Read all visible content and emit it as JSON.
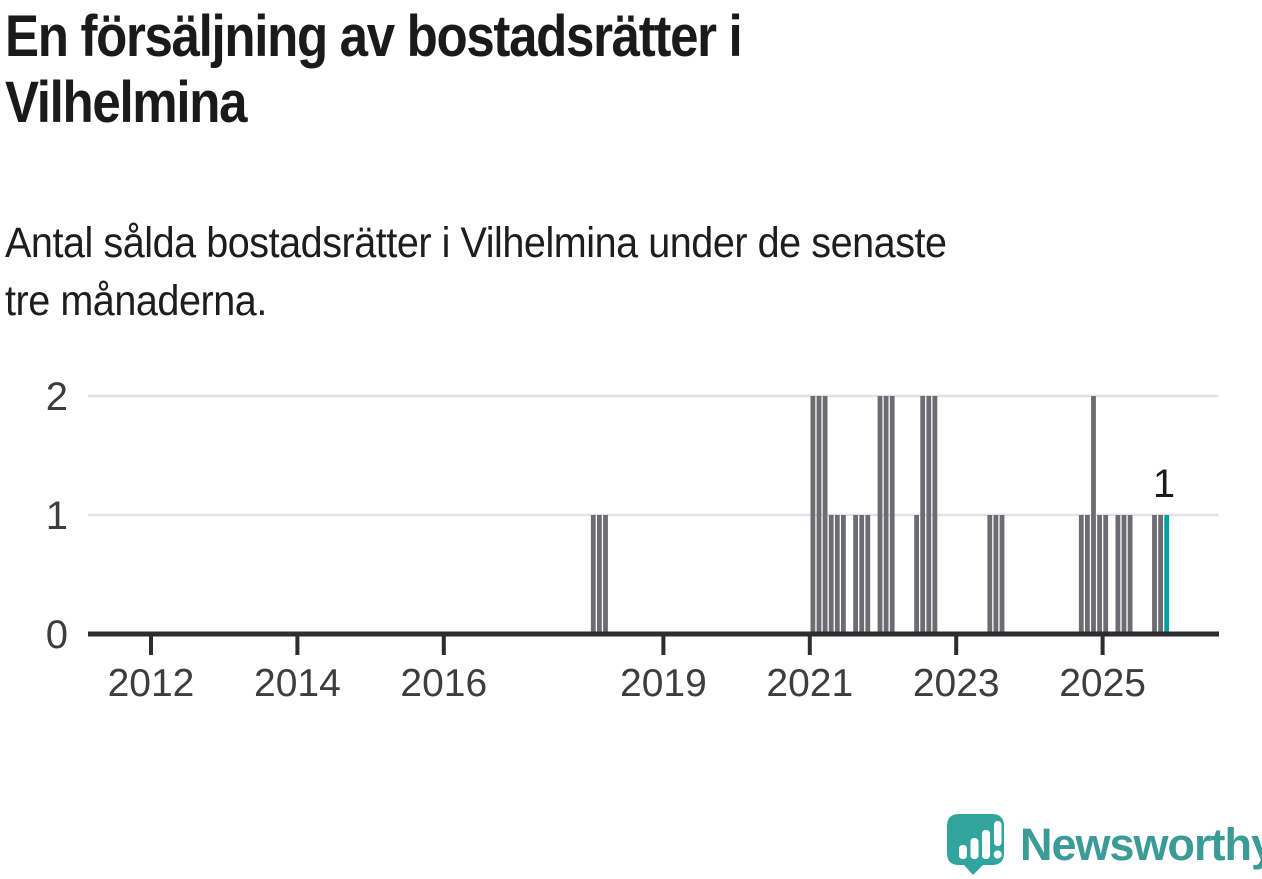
{
  "title": "En försäljning av bostadsrätter i\nVilhelmina",
  "subtitle": "Antal sålda bostadsrätter i Vilhelmina under de senaste\ntre månaderna.",
  "logo": {
    "wordmark": "Newsworthy",
    "icon": "newsworthy-speech-bubble-bar-chart-icon"
  },
  "colors": {
    "bar": "#6C6C72",
    "highlight": "#00A09B",
    "axis": "#2D2D2D",
    "grid": "#E2E2E2",
    "tick_label": "#3D3D3D",
    "title_text": "#1A1A1A",
    "logo_icon_teal": "#31A59D",
    "wordmark_teal": "#3B9B96"
  },
  "chart_data": {
    "type": "bar",
    "title": "En försäljning av bostadsrätter i Vilhelmina",
    "subtitle": "Antal sålda bostadsrätter i Vilhelmina under de senaste tre månaderna.",
    "xlabel": "",
    "ylabel": "",
    "x_ticks": [
      "2012",
      "2014",
      "2016",
      "2019",
      "2021",
      "2023",
      "2025"
    ],
    "y_ticks": [
      "0",
      "1",
      "2"
    ],
    "ylim": [
      0,
      2
    ],
    "x_range_years": [
      2011.2,
      2026.6
    ],
    "grid": "horizontal-only",
    "legend": "none",
    "highlight_label": "1",
    "bars": [
      {
        "month": "2018-01",
        "value": 1
      },
      {
        "month": "2018-02",
        "value": 1
      },
      {
        "month": "2018-03",
        "value": 1
      },
      {
        "month": "2021-01",
        "value": 2
      },
      {
        "month": "2021-02",
        "value": 2
      },
      {
        "month": "2021-03",
        "value": 2
      },
      {
        "month": "2021-04",
        "value": 1
      },
      {
        "month": "2021-05",
        "value": 1
      },
      {
        "month": "2021-06",
        "value": 1
      },
      {
        "month": "2021-08",
        "value": 1
      },
      {
        "month": "2021-09",
        "value": 1
      },
      {
        "month": "2021-10",
        "value": 1
      },
      {
        "month": "2021-12",
        "value": 2
      },
      {
        "month": "2022-01",
        "value": 2
      },
      {
        "month": "2022-02",
        "value": 2
      },
      {
        "month": "2022-06",
        "value": 1
      },
      {
        "month": "2022-07",
        "value": 2
      },
      {
        "month": "2022-08",
        "value": 2
      },
      {
        "month": "2022-09",
        "value": 2
      },
      {
        "month": "2023-06",
        "value": 1
      },
      {
        "month": "2023-07",
        "value": 1
      },
      {
        "month": "2023-08",
        "value": 1
      },
      {
        "month": "2024-09",
        "value": 1
      },
      {
        "month": "2024-10",
        "value": 1
      },
      {
        "month": "2024-11",
        "value": 2
      },
      {
        "month": "2024-12",
        "value": 1
      },
      {
        "month": "2025-01",
        "value": 1
      },
      {
        "month": "2025-03",
        "value": 1
      },
      {
        "month": "2025-04",
        "value": 1
      },
      {
        "month": "2025-05",
        "value": 1
      },
      {
        "month": "2025-09",
        "value": 1
      },
      {
        "month": "2025-10",
        "value": 1
      },
      {
        "month": "2025-11",
        "value": 1,
        "highlight": true
      }
    ]
  }
}
